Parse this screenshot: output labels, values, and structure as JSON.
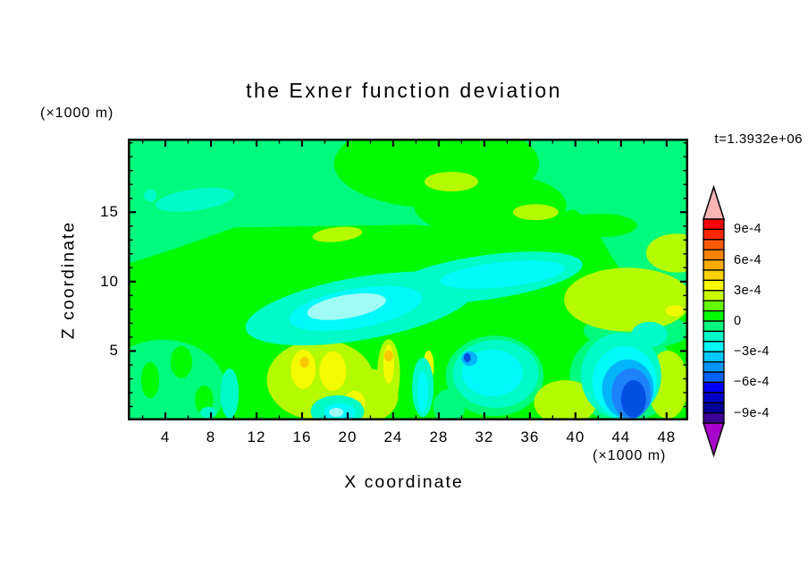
{
  "title": "the Exner function deviation",
  "time_label": "t=1.3932e+06",
  "z_axis_unit_label": "(×1000 m)",
  "x_axis_unit_label": "(×1000 m)",
  "axes": {
    "x": {
      "label": "X coordinate",
      "major_ticks": [
        4,
        8,
        12,
        16,
        20,
        24,
        28,
        32,
        36,
        40,
        44,
        48
      ],
      "minor_tick_step": 2,
      "range": [
        0.7,
        49.9
      ]
    },
    "z": {
      "label": "Z coordinate",
      "major_ticks": [
        5,
        10,
        15
      ],
      "minor_tick_step": 1,
      "range": [
        0,
        20.3
      ]
    }
  },
  "colorbar": {
    "labels": [
      {
        "text": "9e-4",
        "boundary": 1
      },
      {
        "text": "6e-4",
        "boundary": 4
      },
      {
        "text": "3e-4",
        "boundary": 7
      },
      {
        "text": "0",
        "boundary": 10
      },
      {
        "text": "−3e-4",
        "boundary": 13
      },
      {
        "text": "−6e-4",
        "boundary": 16
      },
      {
        "text": "−9e-4",
        "boundary": 19
      }
    ],
    "cell_colors": [
      "#fa0000",
      "#fa2800",
      "#fa5a00",
      "#fa8200",
      "#faaa00",
      "#fad200",
      "#fafa00",
      "#c8fa00",
      "#64fa00",
      "#00fa00",
      "#00fa7d",
      "#00fac8",
      "#00fafa",
      "#00c8fa",
      "#0096fa",
      "#0064fa",
      "#0000fa",
      "#0000c8",
      "#000096",
      "#3c0096"
    ],
    "over_color": "#fab4b4",
    "under_color": "#aa00cc"
  },
  "chart_data": {
    "type": "filled_contour",
    "title": "the Exner function deviation",
    "xlabel": "X coordinate",
    "ylabel": "Z coordinate",
    "x_unit": "(×1000 m)",
    "z_unit": "(×1000 m)",
    "time_annotation": "t=1.3932e+06",
    "x_range": [
      0.7,
      49.9
    ],
    "z_range": [
      0,
      20.3
    ],
    "contour_interval": 0.0001,
    "labeled_levels": [
      0.0009,
      0.0006,
      0.0003,
      0,
      -0.0003,
      -0.0006,
      -0.0009
    ],
    "background_band": "-1e-4..0",
    "palette": {
      "spring": "#00fa7d",
      "green": "#00fa00",
      "chartreuse": "#b4fa00",
      "yellow": "#f4fa00",
      "gold": "#fac800",
      "aqua": "#00fac8",
      "cyan": "#00fafa",
      "pale": "#a0fdf5",
      "sky": "#00b4fa",
      "dodger": "#1e82fa",
      "royal": "#0050e1"
    },
    "value_bands": {
      "spring": "-1e-4..0",
      "green": "0..1e-4",
      "chartreuse": "1e-4..2e-4",
      "yellow": "2e-4..3e-4",
      "gold": "3e-4..4e-4",
      "aqua": "-2e-4..-1e-4",
      "cyan": "-3e-4..-2e-4",
      "pale": "-3e-4 core",
      "sky": "-4e-4..-3e-4",
      "dodger": "-5e-4..-4e-4",
      "royal": "-6e-4..-5e-4"
    },
    "summary": [
      "Field is mostly near zero: background -1e-4..0 (spring green) aloft, broad 0..1e-4 (green) band between z≈6 and z≈14 and near surface",
      "Weak negative streak (-2e-4) upper-left near x≈4-10, z≈15-16",
      "Large diagonal negative streaks (-2e-4..-3e-4, turquoise/cyan) from x≈10,z≈8 rising to x≈38,z≈11",
      "Positive anomalies 1e-4..4e-4 (yellow-green/yellow/gold) near surface around x≈12-24 and x≈38-50 and aloft blobs near x≈29,z≈17",
      "Strong negative cells near surface: to -6e-4 at x≈30.5,z≈4.5 (small) and x≈44-45,z≈1-3 (large blue core)"
    ],
    "features": [
      {
        "c": "green",
        "poly": [
          [
            0.7,
            11.3
          ],
          [
            4.6,
            12.3
          ],
          [
            10.1,
            13.9
          ],
          [
            18,
            14
          ],
          [
            25.8,
            14.1
          ],
          [
            32.1,
            13.7
          ],
          [
            36.8,
            14.6
          ],
          [
            39.9,
            15.2
          ],
          [
            41.5,
            14.2
          ],
          [
            43.1,
            11.9
          ],
          [
            44.6,
            10
          ],
          [
            47,
            9.35
          ],
          [
            49.9,
            9.2
          ],
          [
            49.9,
            0
          ],
          [
            0.7,
            0
          ]
        ]
      },
      {
        "c": "green",
        "e": [
          27.8,
          18.5,
          9.0,
          3.2,
          0
        ]
      },
      {
        "c": "green",
        "e": [
          32.5,
          15.5,
          6.7,
          2.3,
          0
        ]
      },
      {
        "c": "green",
        "e": [
          42.1,
          14.05,
          3.3,
          0.85,
          0
        ]
      },
      {
        "c": "spring",
        "e": [
          3.8,
          2.26,
          5.5,
          3.55,
          0
        ]
      },
      {
        "c": "spring",
        "e": [
          28.9,
          0.97,
          1.4,
          1.3,
          0
        ]
      },
      {
        "c": "spring",
        "e": [
          32.9,
          3.2,
          4.3,
          2.9,
          0
        ]
      },
      {
        "c": "spring",
        "e": [
          44.2,
          3.2,
          4.7,
          3.35,
          0
        ]
      },
      {
        "c": "spring",
        "e": [
          45.4,
          6.45,
          4.7,
          1.3,
          0
        ]
      },
      {
        "c": "green",
        "e": [
          2.66,
          2.9,
          0.8,
          1.3,
          0
        ]
      },
      {
        "c": "green",
        "e": [
          5.4,
          4.2,
          0.95,
          1.16,
          0
        ]
      },
      {
        "c": "green",
        "e": [
          7.4,
          1.48,
          0.8,
          1.03,
          0
        ]
      },
      {
        "c": "chartreuse",
        "e": [
          29.1,
          17.2,
          2.35,
          0.71,
          0
        ]
      },
      {
        "c": "chartreuse",
        "e": [
          36.5,
          15.0,
          2.0,
          0.58,
          0
        ]
      },
      {
        "c": "chartreuse",
        "e": [
          19.1,
          13.4,
          2.2,
          0.52,
          -6
        ]
      },
      {
        "c": "chartreuse",
        "e": [
          44.6,
          8.7,
          5.6,
          2.3,
          0
        ]
      },
      {
        "c": "chartreuse",
        "e": [
          48.9,
          12.06,
          2.7,
          1.4,
          0
        ]
      },
      {
        "c": "chartreuse",
        "e": [
          17.6,
          2.9,
          4.7,
          2.9,
          0
        ]
      },
      {
        "c": "chartreuse",
        "e": [
          21.7,
          1.8,
          2.75,
          1.94,
          0
        ]
      },
      {
        "c": "chartreuse",
        "e": [
          23.6,
          3.4,
          1.0,
          2.45,
          0
        ]
      },
      {
        "c": "chartreuse",
        "e": [
          39.1,
          1.29,
          2.75,
          1.61,
          0
        ]
      },
      {
        "c": "chartreuse",
        "e": [
          48.1,
          2.58,
          1.8,
          2.45,
          0
        ]
      },
      {
        "c": "yellow",
        "e": [
          16.1,
          3.68,
          1.1,
          1.42,
          0
        ]
      },
      {
        "c": "yellow",
        "e": [
          18.7,
          3.55,
          1.18,
          1.42,
          0
        ]
      },
      {
        "c": "yellow",
        "e": [
          20.6,
          1.23,
          0.94,
          0.9,
          0
        ]
      },
      {
        "c": "yellow",
        "e": [
          23.6,
          4.06,
          0.47,
          1.42,
          0
        ]
      },
      {
        "c": "yellow",
        "e": [
          27.1,
          3.87,
          0.47,
          1.16,
          0
        ]
      },
      {
        "c": "yellow",
        "e": [
          48.7,
          7.9,
          0.8,
          0.4,
          0
        ]
      },
      {
        "c": "yellow",
        "e": [
          46.8,
          3.68,
          0.63,
          0.39,
          0
        ]
      },
      {
        "c": "gold",
        "e": [
          23.6,
          4.65,
          0.4,
          0.39,
          0
        ]
      },
      {
        "c": "gold",
        "e": [
          16.2,
          4.19,
          0.4,
          0.39,
          0
        ]
      },
      {
        "c": "aqua",
        "e": [
          6.6,
          15.9,
          3.5,
          0.78,
          -8
        ]
      },
      {
        "c": "aqua",
        "e": [
          2.66,
          16.2,
          0.55,
          0.45,
          0
        ]
      },
      {
        "c": "aqua",
        "e": [
          21.1,
          8.06,
          10.2,
          2.26,
          -10
        ]
      },
      {
        "c": "aqua",
        "e": [
          32.1,
          10.3,
          8.6,
          1.6,
          -8
        ]
      },
      {
        "c": "aqua",
        "e": [
          19.1,
          0.65,
          2.35,
          1.16,
          0
        ]
      },
      {
        "c": "aqua",
        "e": [
          9.64,
          1.94,
          0.8,
          1.8,
          0
        ]
      },
      {
        "c": "aqua",
        "e": [
          26.6,
          2.39,
          0.94,
          2.13,
          0
        ]
      },
      {
        "c": "aqua",
        "e": [
          33.0,
          3.35,
          3.77,
          2.45,
          0
        ]
      },
      {
        "c": "aqua",
        "e": [
          44.0,
          3.23,
          3.53,
          3.1,
          0
        ]
      },
      {
        "c": "aqua",
        "e": [
          7.76,
          0.58,
          0.7,
          0.39,
          0
        ]
      },
      {
        "c": "aqua",
        "e": [
          46.5,
          6.2,
          1.6,
          0.9,
          0
        ]
      },
      {
        "c": "cyan",
        "e": [
          20.7,
          8.06,
          5.9,
          1.42,
          -10
        ]
      },
      {
        "c": "cyan",
        "e": [
          33.6,
          10.5,
          5.5,
          0.9,
          -6
        ]
      },
      {
        "c": "cyan",
        "e": [
          19.3,
          0.58,
          1.4,
          0.65,
          0
        ]
      },
      {
        "c": "cyan",
        "e": [
          26.6,
          2.06,
          0.47,
          1.48,
          0
        ]
      },
      {
        "c": "cyan",
        "e": [
          32.7,
          3.42,
          2.67,
          1.68,
          0
        ]
      },
      {
        "c": "cyan",
        "e": [
          44.3,
          2.77,
          2.82,
          2.58,
          0
        ]
      },
      {
        "c": "pale",
        "e": [
          19.9,
          8.2,
          3.5,
          0.84,
          -10
        ]
      },
      {
        "c": "pale",
        "e": [
          19.0,
          0.58,
          0.63,
          0.32,
          0
        ]
      },
      {
        "c": "sky",
        "e": [
          30.7,
          4.45,
          0.7,
          0.52,
          0
        ]
      },
      {
        "c": "sky",
        "e": [
          44.6,
          2.26,
          2.27,
          2.13,
          0
        ]
      },
      {
        "c": "dodger",
        "e": [
          44.9,
          1.94,
          1.73,
          1.81,
          0
        ]
      },
      {
        "c": "royal",
        "e": [
          30.5,
          4.52,
          0.31,
          0.32,
          0
        ]
      },
      {
        "c": "royal",
        "e": [
          45.1,
          1.55,
          1.1,
          1.35,
          0
        ]
      }
    ]
  }
}
